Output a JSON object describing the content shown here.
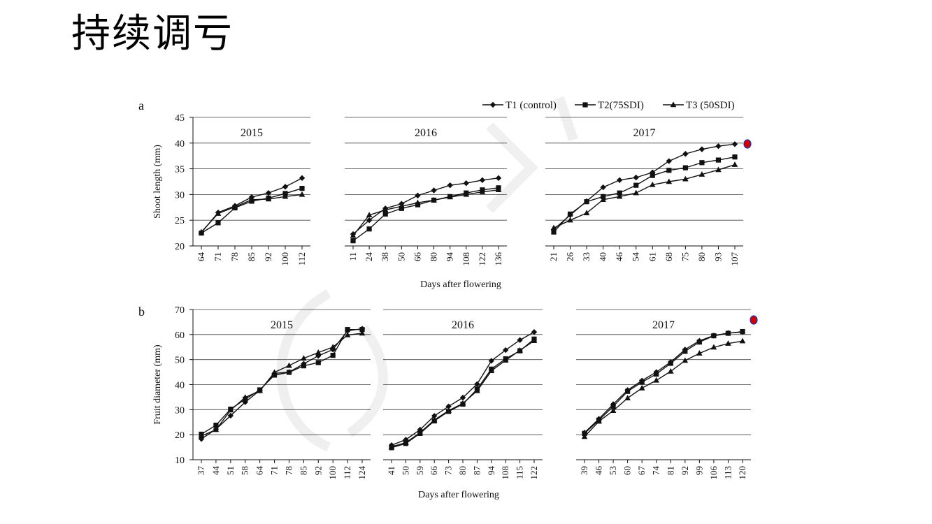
{
  "slide": {
    "title": "持续调亏"
  },
  "legend": [
    "T1 (control)",
    "T2(75SDI)",
    "T3 (50SDI)"
  ],
  "marker_color": "#cc0000",
  "chart_data": [
    {
      "type": "line",
      "panel": "a",
      "ylabel": "Shoot length (mm)",
      "xlabel": "Days after flowering",
      "ylim": [
        20,
        45
      ],
      "yticks": [
        20,
        25,
        30,
        35,
        40,
        45
      ],
      "grid": true,
      "subplots": [
        {
          "year": "2015",
          "x": [
            "64",
            "71",
            "78",
            "85",
            "92",
            "100",
            "112"
          ],
          "series": [
            {
              "name": "T1 (control)",
              "values": [
                22.6,
                26.5,
                27.8,
                29.5,
                30.3,
                31.5,
                33.2
              ]
            },
            {
              "name": "T2(75SDI)",
              "values": [
                22.5,
                24.5,
                27.4,
                28.7,
                29.3,
                30.2,
                31.2
              ]
            },
            {
              "name": "T3 (50SDI)",
              "values": [
                22.7,
                26.3,
                27.6,
                29.0,
                29.1,
                29.6,
                30.0
              ]
            }
          ]
        },
        {
          "year": "2016",
          "x": [
            "11",
            "24",
            "38",
            "50",
            "66",
            "80",
            "94",
            "108",
            "122",
            "136"
          ],
          "series": [
            {
              "name": "T1 (control)",
              "values": [
                22.3,
                25.0,
                27.3,
                28.2,
                29.8,
                30.8,
                31.8,
                32.2,
                32.8,
                33.2
              ]
            },
            {
              "name": "T2(75SDI)",
              "values": [
                21.0,
                23.3,
                26.2,
                27.3,
                28.0,
                28.9,
                29.6,
                30.3,
                30.9,
                31.3
              ]
            },
            {
              "name": "T3 (50SDI)",
              "values": [
                22.0,
                26.0,
                27.0,
                27.7,
                28.4,
                28.9,
                29.5,
                30.0,
                30.5,
                30.9
              ]
            }
          ]
        },
        {
          "year": "2017",
          "x": [
            "21",
            "26",
            "33",
            "40",
            "46",
            "54",
            "61",
            "68",
            "75",
            "80",
            "93",
            "107"
          ],
          "series": [
            {
              "name": "T1 (control)",
              "values": [
                23.2,
                26.0,
                28.7,
                31.4,
                32.8,
                33.3,
                34.3,
                36.5,
                37.9,
                38.8,
                39.4,
                39.8
              ]
            },
            {
              "name": "T2(75SDI)",
              "values": [
                22.7,
                26.2,
                28.6,
                29.6,
                30.3,
                31.8,
                33.7,
                34.7,
                35.2,
                36.2,
                36.7,
                37.3
              ]
            },
            {
              "name": "T3 (50SDI)",
              "values": [
                23.5,
                25.0,
                26.4,
                29.0,
                29.6,
                30.3,
                31.9,
                32.5,
                33.0,
                33.9,
                34.8,
                35.8
              ]
            }
          ]
        }
      ]
    },
    {
      "type": "line",
      "panel": "b",
      "ylabel": "Fruit diameter (mm)",
      "xlabel": "Days after flowering",
      "ylim": [
        10,
        70
      ],
      "yticks": [
        10,
        20,
        30,
        40,
        50,
        60,
        70
      ],
      "grid": true,
      "subplots": [
        {
          "year": "2015",
          "x": [
            "37",
            "44",
            "51",
            "58",
            "64",
            "71",
            "78",
            "85",
            "92",
            "100",
            "112",
            "124"
          ],
          "series": [
            {
              "name": "T1 (control)",
              "values": [
                18.3,
                22.2,
                27.6,
                33.0,
                37.7,
                44.5,
                45.0,
                48.3,
                51.5,
                54.0,
                61.5,
                62.3
              ]
            },
            {
              "name": "T2(75SDI)",
              "values": [
                20.2,
                23.8,
                30.2,
                34.2,
                37.9,
                43.8,
                44.9,
                47.5,
                48.8,
                51.7,
                62.0,
                62.0
              ]
            },
            {
              "name": "T3 (50SDI)",
              "values": [
                19.5,
                22.0,
                29.8,
                34.9,
                37.5,
                44.9,
                47.6,
                50.5,
                52.8,
                55.0,
                59.8,
                60.5
              ]
            }
          ]
        },
        {
          "year": "2016",
          "x": [
            "41",
            "50",
            "59",
            "66",
            "73",
            "80",
            "87",
            "94",
            "108",
            "115",
            "122"
          ],
          "series": [
            {
              "name": "T1 (control)",
              "values": [
                15.8,
                18.0,
                22.0,
                27.5,
                31.3,
                34.8,
                40.2,
                49.5,
                53.8,
                57.8,
                61.0
              ]
            },
            {
              "name": "T2(75SDI)",
              "values": [
                14.8,
                16.5,
                20.5,
                25.5,
                29.3,
                32.2,
                38.2,
                46.2,
                50.3,
                53.5,
                58.2
              ]
            },
            {
              "name": "T3 (50SDI)",
              "values": [
                15.2,
                16.8,
                20.8,
                25.9,
                29.6,
                32.5,
                37.5,
                45.5,
                49.7,
                53.7,
                57.5
              ]
            }
          ]
        },
        {
          "year": "2017",
          "x": [
            "39",
            "46",
            "53",
            "60",
            "67",
            "74",
            "81",
            "92",
            "99",
            "106",
            "113",
            "120"
          ],
          "series": [
            {
              "name": "T1 (control)",
              "values": [
                20.8,
                26.3,
                32.2,
                37.8,
                41.6,
                45.0,
                49.0,
                54.0,
                57.5,
                59.6,
                60.6,
                61.0
              ]
            },
            {
              "name": "T2(75SDI)",
              "values": [
                20.5,
                25.8,
                31.3,
                37.3,
                41.0,
                44.2,
                48.5,
                53.3,
                57.0,
                59.5,
                60.5,
                61.2
              ]
            },
            {
              "name": "T3 (50SDI)",
              "values": [
                19.2,
                25.3,
                29.6,
                34.6,
                38.6,
                41.7,
                45.3,
                49.6,
                52.5,
                54.9,
                56.4,
                57.4
              ]
            }
          ]
        }
      ]
    }
  ]
}
